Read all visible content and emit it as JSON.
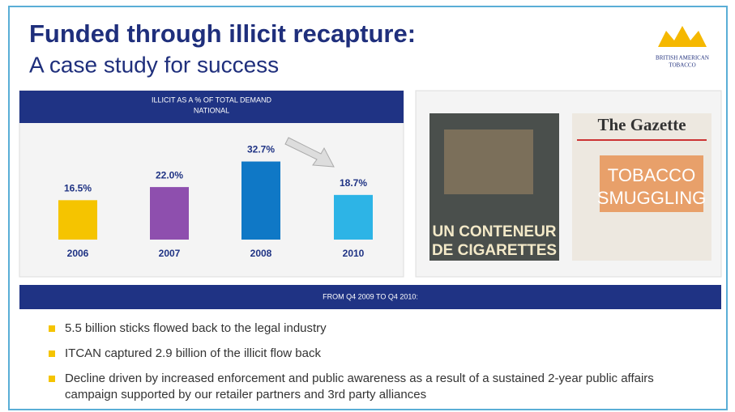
{
  "header": {
    "title": "Funded through illicit recapture:",
    "subtitle": "A case study for success",
    "logo": [
      "BRITISH AMERICAN",
      "TOBACCO"
    ]
  },
  "chart_data": {
    "type": "bar",
    "title": [
      "ILLICIT AS A % OF TOTAL DEMAND",
      "NATIONAL"
    ],
    "categories": [
      "2006",
      "2007",
      "2008",
      "2010"
    ],
    "values": [
      16.5,
      22.0,
      32.7,
      18.7
    ],
    "value_labels": [
      "16.5%",
      "22.0%",
      "32.7%",
      "18.7%"
    ],
    "colors": [
      "#f5c400",
      "#8e4fae",
      "#0f78c6",
      "#2db4e6"
    ]
  },
  "clippings": {
    "left": [
      "UN CONTENEUR",
      "DE CIGARETTES"
    ],
    "right": {
      "masthead": "The Gazette",
      "headline": [
        "TOBACCO",
        "SMUGGLING"
      ]
    }
  },
  "section": {
    "title": "FROM Q4 2009 TO Q4 2010:",
    "bullets": [
      "5.5 billion sticks flowed back to the legal industry",
      "ITCAN captured 2.9 billion of the illicit flow back",
      "Decline driven by increased enforcement and public awareness as a result of a sustained 2-year public affairs campaign supported by our retailer partners and 3rd party alliances"
    ]
  }
}
